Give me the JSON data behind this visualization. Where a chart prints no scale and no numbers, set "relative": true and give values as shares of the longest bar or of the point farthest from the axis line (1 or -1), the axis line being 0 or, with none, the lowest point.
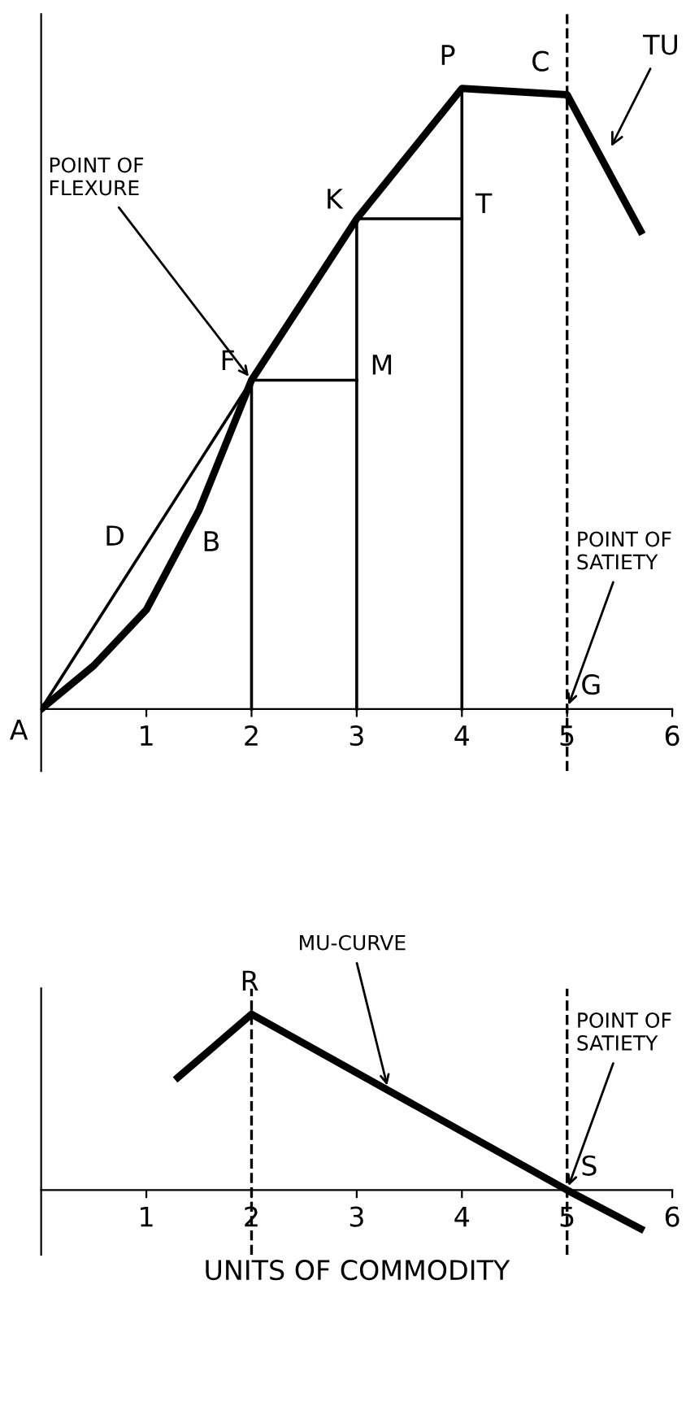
{
  "chart_data": [
    {
      "type": "line",
      "relative": true,
      "xlim": [
        0,
        6
      ],
      "xticks": [
        1,
        2,
        3,
        4,
        5,
        6
      ],
      "tick_labels": "x",
      "grid": false,
      "marker": "none",
      "line_style": "solid",
      "series": [
        {
          "color": "#000000",
          "x": [
            0,
            0.5,
            1,
            1.5,
            2,
            3,
            4,
            5,
            5.7
          ],
          "values": [
            0,
            0.07,
            0.16,
            0.32,
            0.53,
            0.79,
            1,
            0.99,
            0.77
          ]
        },
        {
          "color": "#000000",
          "x": [
            0,
            2
          ],
          "values": [
            0,
            0.53
          ]
        },
        {
          "color": "#000000",
          "x": [
            2,
            2
          ],
          "values": [
            0,
            0.53
          ]
        },
        {
          "color": "#000000",
          "x": [
            2,
            3
          ],
          "values": [
            0.53,
            0.53
          ]
        },
        {
          "color": "#000000",
          "x": [
            3,
            3
          ],
          "values": [
            0,
            0.79
          ]
        },
        {
          "color": "#000000",
          "x": [
            3,
            4
          ],
          "values": [
            0.79,
            0.79
          ]
        },
        {
          "color": "#000000",
          "x": [
            4,
            4
          ],
          "values": [
            0,
            1
          ]
        }
      ],
      "ref_lines": [
        {
          "axis": "x",
          "value": 5,
          "label": null,
          "color": "#000000",
          "line_style": "dashed"
        }
      ],
      "annotations": [
        {
          "text": "A",
          "x": 0,
          "y": 0
        },
        {
          "text": "B",
          "x": 1.4,
          "y": 0.26
        },
        {
          "text": "D",
          "x": 0.9,
          "y": 0.24
        },
        {
          "text": "F",
          "x": 2,
          "y": 0.53
        },
        {
          "text": "M",
          "x": 3,
          "y": 0.53
        },
        {
          "text": "K",
          "x": 3,
          "y": 0.79
        },
        {
          "text": "T",
          "x": 4,
          "y": 0.79
        },
        {
          "text": "P",
          "x": 4,
          "y": 1
        },
        {
          "text": "C",
          "x": 5,
          "y": 0.99
        },
        {
          "text": "G",
          "x": 5,
          "y": 0
        },
        {
          "text": "POINT OF\nFLEXURE",
          "x": 2,
          "y": 0.53
        },
        {
          "text": "TU",
          "x": 5.4,
          "y": 0.9
        },
        {
          "text": "POINT OF\nSATIETY",
          "x": 5,
          "y": 0
        }
      ]
    },
    {
      "type": "line",
      "relative": true,
      "xlim": [
        0,
        6
      ],
      "xticks": [
        1,
        2,
        3,
        4,
        5,
        6
      ],
      "tick_labels": "x",
      "grid": false,
      "marker": "none",
      "line_style": "solid",
      "xlabel": "UNITS OF COMMODITY",
      "series": [
        {
          "color": "#000000",
          "x": [
            1.3,
            2,
            5,
            5.7
          ],
          "values": [
            0.64,
            1,
            0,
            -0.22
          ]
        }
      ],
      "ref_lines": [
        {
          "axis": "x",
          "value": 2,
          "label": null,
          "color": "#000000",
          "line_style": "dashed"
        },
        {
          "axis": "x",
          "value": 5,
          "label": null,
          "color": "#000000",
          "line_style": "dashed"
        }
      ],
      "annotations": [
        {
          "text": "R",
          "x": 2,
          "y": 1
        },
        {
          "text": "S",
          "x": 5,
          "y": 0
        },
        {
          "text": "MU-CURVE",
          "x": 3.3,
          "y": 0.57
        },
        {
          "text": "POINT OF\nSATIETY",
          "x": 5,
          "y": 0
        }
      ]
    }
  ]
}
